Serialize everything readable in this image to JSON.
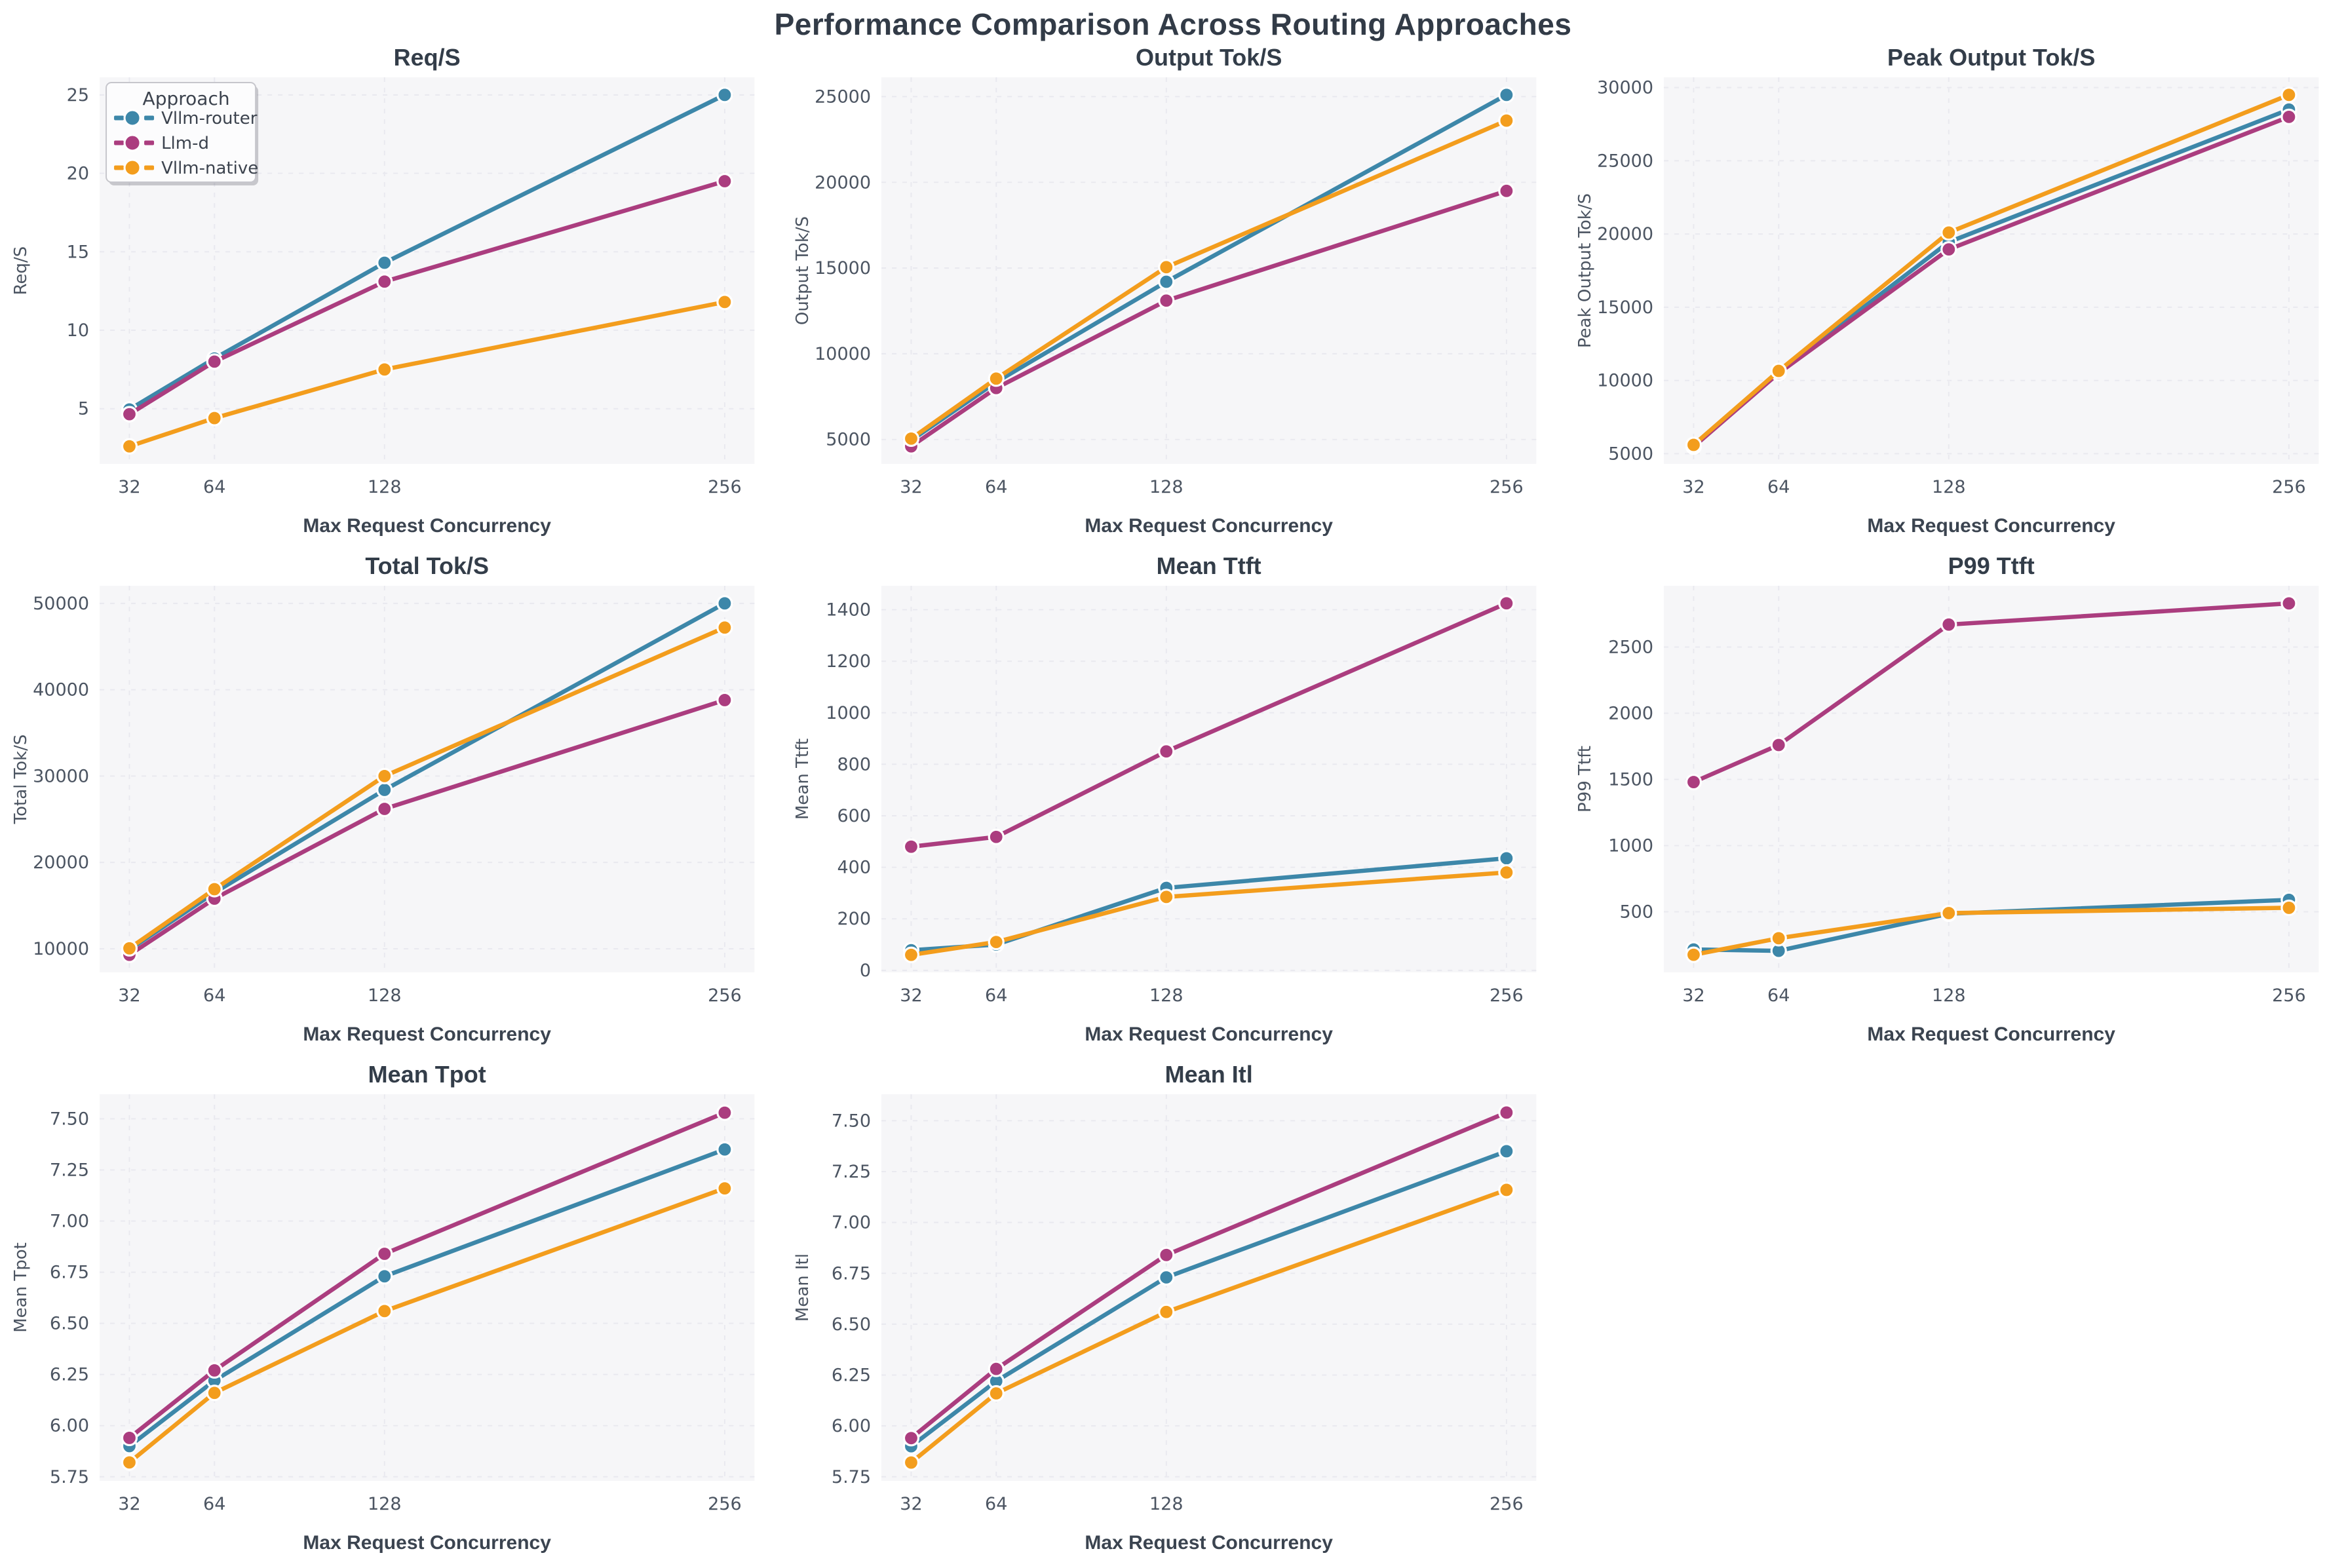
{
  "figure_title": "Performance Comparison Across Routing Approaches",
  "palette": {
    "router": "#3d87a9",
    "llm_d": "#ab3d7f",
    "native": "#f39d1d"
  },
  "legend": {
    "title": "Approach",
    "entries": [
      "Vllm-router",
      "Llm-d",
      "Vllm-native"
    ]
  },
  "x_axis": {
    "label": "Max Request Concurrency",
    "ticks": [
      32,
      64,
      128,
      256
    ],
    "xlim": [
      20.8,
      267.2
    ]
  },
  "chart_data": [
    {
      "type": "line",
      "title": "Req/S",
      "ylabel": "Req/S",
      "xlabel": "Max Request Concurrency",
      "x": [
        32,
        64,
        128,
        256
      ],
      "ylim": [
        1.48,
        26.12
      ],
      "yticks": [
        5,
        10,
        15,
        20,
        25
      ],
      "decimals": 0,
      "legend": true,
      "series": [
        {
          "name": "Vllm-router",
          "color": "router",
          "values": [
            4.95,
            8.2,
            14.3,
            25.0
          ]
        },
        {
          "name": "Llm-d",
          "color": "llm_d",
          "values": [
            4.65,
            8.0,
            13.1,
            19.5
          ]
        },
        {
          "name": "Vllm-native",
          "color": "native",
          "values": [
            2.6,
            4.4,
            7.5,
            11.8
          ]
        }
      ]
    },
    {
      "type": "line",
      "title": "Output Tok/S",
      "ylabel": "Output Tok/S",
      "xlabel": "Max Request Concurrency",
      "x": [
        32,
        64,
        128,
        256
      ],
      "ylim": [
        3575,
        26125
      ],
      "yticks": [
        5000,
        10000,
        15000,
        20000,
        25000
      ],
      "decimals": 0,
      "legend": false,
      "series": [
        {
          "name": "Vllm-router",
          "color": "router",
          "values": [
            4950,
            8350,
            14200,
            25100
          ]
        },
        {
          "name": "Llm-d",
          "color": "llm_d",
          "values": [
            4600,
            8000,
            13100,
            19500
          ]
        },
        {
          "name": "Vllm-native",
          "color": "native",
          "values": [
            5050,
            8550,
            15050,
            23600
          ]
        }
      ]
    },
    {
      "type": "line",
      "title": "Peak Output Tok/S",
      "ylabel": "Peak Output Tok/S",
      "xlabel": "Max Request Concurrency",
      "x": [
        32,
        64,
        128,
        256
      ],
      "ylim": [
        4300,
        30700
      ],
      "yticks": [
        5000,
        10000,
        15000,
        20000,
        25000,
        30000
      ],
      "decimals": 0,
      "legend": false,
      "series": [
        {
          "name": "Vllm-router",
          "color": "router",
          "values": [
            5520,
            10560,
            19450,
            28500
          ]
        },
        {
          "name": "Llm-d",
          "color": "llm_d",
          "values": [
            5480,
            10500,
            18950,
            28000
          ]
        },
        {
          "name": "Vllm-native",
          "color": "native",
          "values": [
            5600,
            10650,
            20100,
            29500
          ]
        }
      ]
    },
    {
      "type": "line",
      "title": "Total Tok/S",
      "ylabel": "Total Tok/S",
      "xlabel": "Max Request Concurrency",
      "x": [
        32,
        64,
        128,
        256
      ],
      "ylim": [
        7265,
        52035
      ],
      "yticks": [
        10000,
        20000,
        30000,
        40000,
        50000
      ],
      "decimals": 0,
      "legend": false,
      "series": [
        {
          "name": "Vllm-router",
          "color": "router",
          "values": [
            9900,
            16500,
            28400,
            50000
          ]
        },
        {
          "name": "Llm-d",
          "color": "llm_d",
          "values": [
            9300,
            15800,
            26200,
            38800
          ]
        },
        {
          "name": "Vllm-native",
          "color": "native",
          "values": [
            10050,
            16900,
            30000,
            47200
          ]
        }
      ]
    },
    {
      "type": "line",
      "title": "Mean Ttft",
      "ylabel": "Mean Ttft",
      "xlabel": "Max Request Concurrency",
      "x": [
        32,
        64,
        128,
        256
      ],
      "ylim": [
        -8,
        1493
      ],
      "yticks": [
        0,
        200,
        400,
        600,
        800,
        1000,
        1200,
        1400
      ],
      "decimals": 0,
      "legend": false,
      "series": [
        {
          "name": "Vllm-router",
          "color": "router",
          "values": [
            78,
            100,
            320,
            435
          ]
        },
        {
          "name": "Llm-d",
          "color": "llm_d",
          "values": [
            480,
            518,
            850,
            1425
          ]
        },
        {
          "name": "Vllm-native",
          "color": "native",
          "values": [
            60,
            110,
            285,
            380
          ]
        }
      ]
    },
    {
      "type": "line",
      "title": "P99 Ttft",
      "ylabel": "P99 Ttft",
      "xlabel": "Max Request Concurrency",
      "x": [
        32,
        64,
        128,
        256
      ],
      "ylim": [
        42,
        2963
      ],
      "yticks": [
        500,
        1000,
        1500,
        2000,
        2500
      ],
      "decimals": 0,
      "legend": false,
      "series": [
        {
          "name": "Vllm-router",
          "color": "router",
          "values": [
            215,
            205,
            485,
            590
          ]
        },
        {
          "name": "Llm-d",
          "color": "llm_d",
          "values": [
            1480,
            1760,
            2670,
            2830
          ]
        },
        {
          "name": "Vllm-native",
          "color": "native",
          "values": [
            175,
            300,
            490,
            530
          ]
        }
      ]
    },
    {
      "type": "line",
      "title": "Mean Tpot",
      "ylabel": "Mean Tpot",
      "xlabel": "Max Request Concurrency",
      "x": [
        32,
        64,
        128,
        256
      ],
      "ylim": [
        5.73,
        7.62
      ],
      "yticks": [
        5.75,
        6.0,
        6.25,
        6.5,
        6.75,
        7.0,
        7.25,
        7.5
      ],
      "decimals": 2,
      "legend": false,
      "series": [
        {
          "name": "Vllm-router",
          "color": "router",
          "values": [
            5.9,
            6.22,
            6.73,
            7.35
          ]
        },
        {
          "name": "Llm-d",
          "color": "llm_d",
          "values": [
            5.94,
            6.27,
            6.84,
            7.53
          ]
        },
        {
          "name": "Vllm-native",
          "color": "native",
          "values": [
            5.82,
            6.16,
            6.56,
            7.16
          ]
        }
      ]
    },
    {
      "type": "line",
      "title": "Mean Itl",
      "ylabel": "Mean Itl",
      "xlabel": "Max Request Concurrency",
      "x": [
        32,
        64,
        128,
        256
      ],
      "ylim": [
        5.73,
        7.63
      ],
      "yticks": [
        5.75,
        6.0,
        6.25,
        6.5,
        6.75,
        7.0,
        7.25,
        7.5
      ],
      "decimals": 2,
      "legend": false,
      "series": [
        {
          "name": "Vllm-router",
          "color": "router",
          "values": [
            5.9,
            6.22,
            6.73,
            7.35
          ]
        },
        {
          "name": "Llm-d",
          "color": "llm_d",
          "values": [
            5.94,
            6.28,
            6.84,
            7.54
          ]
        },
        {
          "name": "Vllm-native",
          "color": "native",
          "values": [
            5.82,
            6.16,
            6.56,
            7.16
          ]
        }
      ]
    }
  ]
}
